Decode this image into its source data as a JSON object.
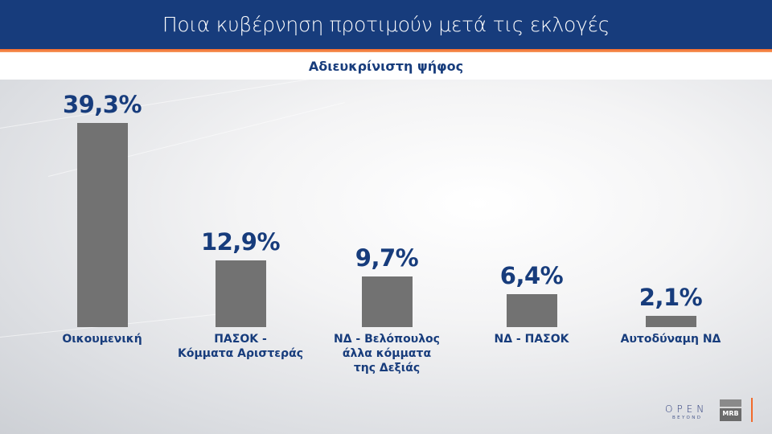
{
  "header": {
    "title": "Ποια κυβέρνηση προτιμούν μετά τις εκλογές"
  },
  "subtitle": "Αδιευκρίνιστη ψήφος",
  "colors": {
    "header_bg": "#173c7c",
    "accent": "#f26a2b",
    "bar": "#727272",
    "text": "#173c7c"
  },
  "chart_data": {
    "type": "bar",
    "title": "Ποια κυβέρνηση προτιμούν μετά τις εκλογές",
    "subtitle": "Αδιευκρίνιστη ψήφος",
    "categories": [
      "Οικουμενική",
      "ΠΑΣΟΚ - Κόμματα Αριστεράς",
      "ΝΔ - Βελόπουλος άλλα κόμματα της Δεξιάς",
      "ΝΔ - ΠΑΣΟΚ",
      "Αυτοδύναμη ΝΔ"
    ],
    "values": [
      39.3,
      12.9,
      9.7,
      6.4,
      2.1
    ],
    "value_labels": [
      "39,3%",
      "12,9%",
      "9,7%",
      "6,4%",
      "2,1%"
    ],
    "category_labels": [
      "Οικουμενική",
      "ΠΑΣΟΚ -\nΚόμματα Αριστεράς",
      "ΝΔ - Βελόπουλος\nάλλα κόμματα\nτης Δεξιάς",
      "ΝΔ - ΠΑΣΟΚ",
      "Αυτοδύναμη ΝΔ"
    ],
    "xlabel": "",
    "ylabel": "",
    "ylim": [
      0,
      40
    ],
    "grid": false,
    "legend": "none",
    "unit": "%"
  },
  "footer": {
    "logo_open": "OPEN",
    "logo_beyond": "BEYOND",
    "logo_mrb": "MRB"
  }
}
